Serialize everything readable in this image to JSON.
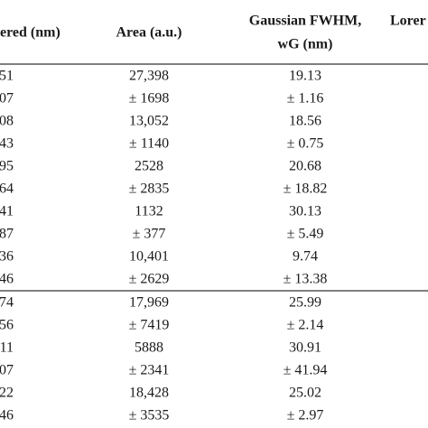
{
  "table": {
    "header": [
      "ered (nm)",
      "Area (a.u.)",
      "Gaussian FWHM,",
      "wG (nm)",
      "Lorer"
    ],
    "rows": [
      [
        "51",
        "27,398",
        "19.13"
      ],
      [
        "07",
        "± 1698",
        "± 1.16"
      ],
      [
        "08",
        "13,052",
        "18.56"
      ],
      [
        "43",
        "± 1140",
        "± 0.75"
      ],
      [
        "95",
        "2528",
        "20.68"
      ],
      [
        "64",
        "± 2835",
        "± 18.82"
      ],
      [
        "41",
        "1132",
        "30.13"
      ],
      [
        "87",
        "± 377",
        "± 5.49"
      ],
      [
        "36",
        "10,401",
        "9.74"
      ],
      [
        "46",
        "± 2629",
        "± 13.38"
      ],
      [
        "74",
        "17,969",
        "25.99"
      ],
      [
        "56",
        "± 7419",
        "± 2.14"
      ],
      [
        "11",
        "5888",
        "30.91"
      ],
      [
        "07",
        "± 2341",
        "± 41.94"
      ],
      [
        "22",
        "18,428",
        "25.02"
      ],
      [
        "46",
        "± 3535",
        "± 2.97"
      ]
    ]
  }
}
